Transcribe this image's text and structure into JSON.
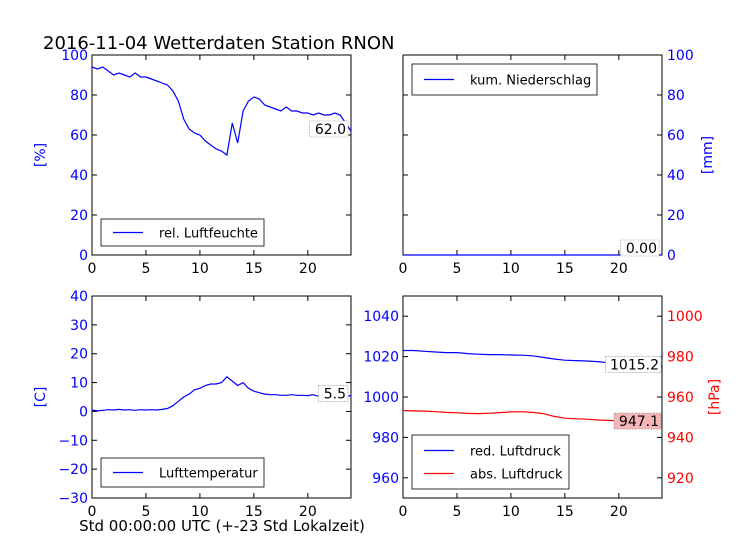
{
  "page": {
    "title": "2016-11-04 Wetterdaten Station RNON",
    "xaxis_label": "Std 00:00:00 UTC (+-23 Std Lokalzeit)"
  },
  "colors": {
    "blue": "#0000ff",
    "red": "#ff0000",
    "black": "#000000",
    "pressure_label_bg": "#f4b6b6"
  },
  "chart_data": [
    {
      "id": "humidity",
      "type": "line",
      "ylabel": "[%]",
      "xlim": [
        0,
        24
      ],
      "ylim": [
        0,
        100
      ],
      "xticks": [
        0,
        5,
        10,
        15,
        20
      ],
      "yticks": [
        0,
        20,
        40,
        60,
        80,
        100
      ],
      "legend": "bottom-left",
      "series": [
        {
          "name": "rel. Luftfeuchte",
          "color": "#0000ff",
          "x": [
            0,
            0.5,
            1,
            1.5,
            2,
            2.5,
            3,
            3.5,
            4,
            4.5,
            5,
            5.5,
            6,
            6.5,
            7,
            7.5,
            8,
            8.5,
            9,
            9.5,
            10,
            10.5,
            11,
            11.5,
            12,
            12.5,
            13,
            13.5,
            14,
            14.5,
            15,
            15.5,
            16,
            16.5,
            17,
            17.5,
            18,
            18.5,
            19,
            19.5,
            20,
            20.5,
            21,
            21.5,
            22,
            22.5,
            23,
            23.5,
            24
          ],
          "y": [
            94,
            93,
            94,
            92,
            90,
            91,
            90,
            89,
            91,
            89,
            89,
            88,
            87,
            86,
            85,
            82,
            77,
            68,
            63,
            61,
            60,
            57,
            55,
            53,
            52,
            50,
            66,
            56,
            72,
            77,
            79,
            78,
            75,
            74,
            73,
            72,
            74,
            72,
            72,
            71,
            71,
            70,
            71,
            70,
            70,
            71,
            70,
            66,
            62
          ]
        }
      ],
      "last_value_label": "62.0"
    },
    {
      "id": "precipitation",
      "type": "line",
      "ylabel": "[mm]",
      "xlim": [
        0,
        24
      ],
      "ylim": [
        0,
        100
      ],
      "xticks": [
        0,
        5,
        10,
        15,
        20
      ],
      "yticks": [
        0,
        20,
        40,
        60,
        80,
        100
      ],
      "legend": "top-left",
      "series": [
        {
          "name": "kum. Niederschlag",
          "color": "#0000ff",
          "x": [
            0,
            24
          ],
          "y": [
            0,
            0
          ]
        }
      ],
      "last_value_label": "0.00"
    },
    {
      "id": "temperature",
      "type": "line",
      "ylabel": "[C]",
      "xlim": [
        0,
        24
      ],
      "ylim": [
        -30,
        40
      ],
      "xticks": [
        0,
        5,
        10,
        15,
        20
      ],
      "yticks": [
        -30,
        -20,
        -10,
        0,
        10,
        20,
        30,
        40
      ],
      "legend": "bottom-left",
      "series": [
        {
          "name": "Lufttemperatur",
          "color": "#0000ff",
          "x": [
            0,
            0.5,
            1,
            1.5,
            2,
            2.5,
            3,
            3.5,
            4,
            4.5,
            5,
            5.5,
            6,
            6.5,
            7,
            7.5,
            8,
            8.5,
            9,
            9.5,
            10,
            10.5,
            11,
            11.5,
            12,
            12.5,
            13,
            13.5,
            14,
            14.5,
            15,
            15.5,
            16,
            16.5,
            17,
            17.5,
            18,
            18.5,
            19,
            19.5,
            20,
            20.5,
            21,
            21.5,
            22,
            22.5,
            23,
            23.5,
            24
          ],
          "y": [
            0.5,
            0.2,
            0.4,
            0.6,
            0.5,
            0.7,
            0.5,
            0.6,
            0.4,
            0.6,
            0.5,
            0.6,
            0.5,
            0.7,
            1,
            2,
            3.5,
            5,
            6,
            7.5,
            8,
            9,
            9.5,
            9.5,
            10,
            12,
            10.5,
            9,
            10,
            8,
            7,
            6.5,
            6,
            5.8,
            5.8,
            5.6,
            5.6,
            5.8,
            5.6,
            5.6,
            5.5,
            5.8,
            5.2,
            5,
            5.2,
            5,
            5.5,
            5.2,
            5.5
          ]
        }
      ],
      "last_value_label": "5.5"
    },
    {
      "id": "pressure",
      "type": "line",
      "xlim": [
        0,
        24
      ],
      "xticks": [
        0,
        5,
        10,
        15,
        20
      ],
      "y_left": {
        "ylim": [
          950,
          1050
        ],
        "yticks": [
          960,
          980,
          1000,
          1020,
          1040
        ],
        "color": "#0000ff"
      },
      "y_right": {
        "ylabel": "[hPa]",
        "ylim": [
          910,
          1010
        ],
        "yticks": [
          920,
          940,
          960,
          980,
          1000
        ],
        "color": "#ff0000"
      },
      "legend": "bottom-left",
      "series": [
        {
          "name": "red. Luftdruck",
          "color": "#0000ff",
          "axis": "left",
          "x": [
            0,
            1,
            2,
            3,
            4,
            5,
            6,
            7,
            8,
            9,
            10,
            11,
            12,
            13,
            14,
            15,
            16,
            17,
            18,
            19,
            20,
            21,
            22,
            23,
            24
          ],
          "y": [
            1023,
            1023,
            1022.6,
            1022.3,
            1022,
            1022,
            1021.5,
            1021.2,
            1021,
            1021,
            1020.8,
            1020.7,
            1020.4,
            1019.6,
            1018.8,
            1018.2,
            1018,
            1017.8,
            1017.5,
            1017,
            1016.8,
            1016.3,
            1015.8,
            1015.5,
            1015.2
          ]
        },
        {
          "name": "abs. Luftdruck",
          "color": "#ff0000",
          "axis": "right",
          "x": [
            0,
            1,
            2,
            3,
            4,
            5,
            6,
            7,
            8,
            9,
            10,
            11,
            12,
            13,
            14,
            15,
            16,
            17,
            18,
            19,
            20,
            21,
            22,
            23,
            24
          ],
          "y": [
            953.3,
            953.1,
            953,
            952.7,
            952.4,
            952.2,
            951.9,
            951.8,
            952,
            952.3,
            952.6,
            952.7,
            952.4,
            951.8,
            950.4,
            949.5,
            949.2,
            949,
            948.6,
            948.4,
            948.2,
            947.8,
            947.5,
            947.3,
            947.1
          ]
        }
      ],
      "last_value_labels": {
        "left": "1015.2",
        "right": "947.1"
      }
    }
  ]
}
